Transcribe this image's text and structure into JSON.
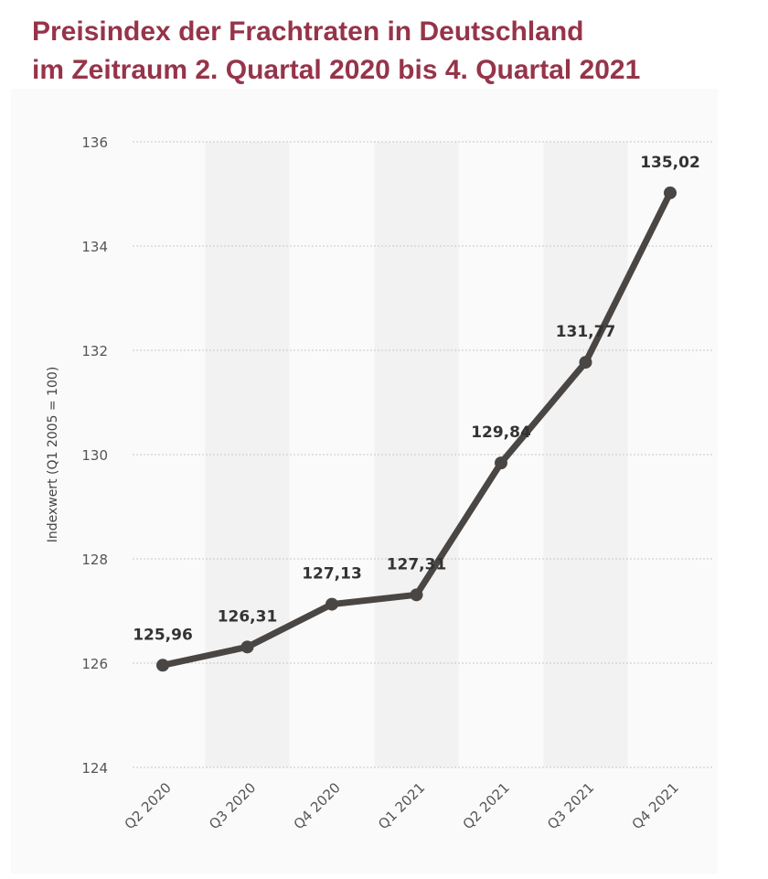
{
  "chart_data": {
    "type": "line",
    "title": [
      "Preisindex der Frachtraten in Deutschland",
      "im Zeitraum 2. Quartal 2020 bis 4. Quartal 2021"
    ],
    "ylabel": "Indexwert (Q1 2005 = 100)",
    "xlabel": "",
    "categories": [
      "Q2 2020",
      "Q3 2020",
      "Q4 2020",
      "Q1 2021",
      "Q2 2021",
      "Q3 2021",
      "Q4 2021"
    ],
    "values": [
      125.96,
      126.31,
      127.13,
      127.31,
      129.84,
      131.77,
      135.02
    ],
    "value_labels": [
      "125,96",
      "126,31",
      "127,13",
      "127,31",
      "129,84",
      "131,77",
      "135,02"
    ],
    "ylim": [
      124,
      136
    ],
    "yticks": [
      "124",
      "126",
      "128",
      "130",
      "132",
      "134",
      "136"
    ],
    "grid": true,
    "line_color": "#4a4644",
    "title_color": "#963449"
  }
}
